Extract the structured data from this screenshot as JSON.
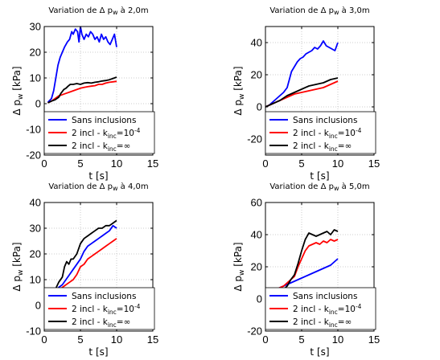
{
  "figure": {
    "legend_labels": [
      "Sans inclusions",
      "2 incl - k",
      "2 incl - k"
    ],
    "legend_sub": [
      "",
      "inc",
      "inc"
    ],
    "legend_sup": [
      "",
      "=10",
      "=∞"
    ],
    "legend_sup_exp": [
      "",
      "-4",
      ""
    ],
    "xlabel_main": "t [s]",
    "ylabel_main": "Δ p",
    "ylabel_sub": "w",
    "ylabel_unit": " [kPa]"
  },
  "colors": {
    "sans": "#0000ff",
    "incl_1e4": "#ff0000",
    "incl_inf": "#000000",
    "grid": "#bfbfbf"
  },
  "chart_data": [
    {
      "type": "line",
      "title_pre": "Variation de Δ p",
      "title_sub": "w",
      "title_post": " à 2,0m",
      "xlabel": "t [s]",
      "ylabel": "Δ p w [kPa]",
      "xlim": [
        0,
        15
      ],
      "ylim": [
        -20,
        30
      ],
      "xticks": [
        0,
        5,
        10,
        15
      ],
      "yticks": [
        -20,
        -10,
        0,
        10,
        20,
        30
      ],
      "grid": true,
      "legend": "lower-right",
      "series": [
        {
          "name": "Sans inclusions",
          "color": "#0000ff",
          "x": [
            0.5,
            1.0,
            1.3,
            1.6,
            1.9,
            2.2,
            2.5,
            2.8,
            3.0,
            3.2,
            3.5,
            3.8,
            4.0,
            4.3,
            4.6,
            4.8,
            5.0,
            5.2,
            5.5,
            5.8,
            6.1,
            6.4,
            6.7,
            7.0,
            7.3,
            7.6,
            7.9,
            8.2,
            8.5,
            8.8,
            9.1,
            9.4,
            9.7,
            10.0
          ],
          "values": [
            0.5,
            2,
            5,
            10,
            15,
            18,
            20,
            22,
            23,
            24,
            25,
            28,
            27,
            29,
            28,
            24,
            30,
            27,
            25,
            27,
            26,
            28,
            27,
            25,
            26,
            24,
            27,
            25,
            26,
            24,
            23,
            25,
            27,
            22
          ]
        },
        {
          "name": "2 incl - kinc=10-4",
          "color": "#ff0000",
          "x": [
            0.5,
            1.0,
            1.5,
            2.0,
            2.5,
            3.0,
            3.5,
            4.0,
            4.5,
            5.0,
            5.5,
            6.0,
            6.5,
            7.0,
            7.5,
            8.0,
            8.5,
            9.0,
            9.5,
            10.0
          ],
          "values": [
            0.3,
            1.0,
            2.0,
            3.0,
            3.5,
            4.0,
            4.5,
            5.0,
            5.5,
            6.0,
            6.3,
            6.6,
            6.8,
            7.0,
            7.5,
            7.5,
            8.0,
            8.3,
            8.5,
            8.7
          ]
        },
        {
          "name": "2 incl - kinc=∞",
          "color": "#000000",
          "x": [
            0.5,
            1.0,
            1.5,
            2.0,
            2.3,
            2.7,
            3.0,
            3.3,
            3.6,
            4.0,
            4.5,
            5.0,
            5.5,
            6.0,
            6.5,
            7.0,
            7.5,
            8.0,
            8.5,
            9.0,
            9.5,
            10.0
          ],
          "values": [
            0.3,
            1.0,
            1.5,
            2.5,
            4.0,
            5.5,
            6.0,
            6.8,
            7.5,
            7.5,
            7.8,
            7.5,
            8.0,
            8.2,
            8.0,
            8.3,
            8.5,
            8.8,
            9.0,
            9.3,
            9.8,
            10.3
          ]
        }
      ]
    },
    {
      "type": "line",
      "title_pre": "Variation de Δ p",
      "title_sub": "w",
      "title_post": " à 3,0m",
      "xlabel": "t [s]",
      "ylabel": "Δ p w [kPa]",
      "xlim": [
        0,
        15
      ],
      "ylim": [
        -30,
        50
      ],
      "xticks": [
        0,
        5,
        10,
        15
      ],
      "yticks": [
        -20,
        0,
        20,
        40
      ],
      "grid": true,
      "legend": "lower-right",
      "series": [
        {
          "name": "Sans inclusions",
          "color": "#0000ff",
          "x": [
            0,
            0.5,
            1.0,
            1.5,
            2.0,
            2.5,
            3.0,
            3.3,
            3.6,
            4.0,
            4.4,
            4.8,
            5.2,
            5.6,
            6.0,
            6.4,
            6.8,
            7.2,
            7.6,
            8.0,
            8.4,
            8.8,
            9.2,
            9.6,
            10.0
          ],
          "values": [
            0,
            1,
            3,
            5,
            7,
            9,
            12,
            17,
            22,
            25,
            28,
            30,
            31,
            33,
            34,
            35,
            37,
            36,
            38,
            41,
            38,
            37,
            36,
            35,
            40
          ]
        },
        {
          "name": "2 incl - kinc=10-4",
          "color": "#ff0000",
          "x": [
            0,
            1.0,
            2.0,
            3.0,
            4.0,
            5.0,
            6.0,
            7.0,
            8.0,
            9.0,
            10.0
          ],
          "values": [
            0,
            2,
            4,
            6,
            8,
            9,
            10,
            11,
            12,
            14,
            16
          ]
        },
        {
          "name": "2 incl - kinc=∞",
          "color": "#000000",
          "x": [
            0,
            1.0,
            2.0,
            3.0,
            4.0,
            5.0,
            6.0,
            7.0,
            8.0,
            9.0,
            10.0
          ],
          "values": [
            0,
            2,
            4,
            7,
            9,
            11,
            13,
            14,
            15,
            17,
            18
          ]
        }
      ]
    },
    {
      "type": "line",
      "title_pre": "Variation de Δ p",
      "title_sub": "w",
      "title_post": " à 4,0m",
      "xlabel": "t [s]",
      "ylabel": "Δ p w [kPa]",
      "xlim": [
        0,
        15
      ],
      "ylim": [
        -10,
        40
      ],
      "xticks": [
        0,
        5,
        10,
        15
      ],
      "yticks": [
        -10,
        0,
        10,
        20,
        30,
        40
      ],
      "grid": true,
      "legend": "lower-right",
      "series": [
        {
          "name": "Sans inclusions",
          "color": "#0000ff",
          "x": [
            0,
            0.5,
            1.0,
            1.5,
            2.0,
            2.5,
            3.0,
            3.5,
            4.0,
            4.5,
            5.0,
            5.5,
            6.0,
            6.5,
            7.0,
            7.5,
            8.0,
            8.5,
            9.0,
            9.5,
            10.0
          ],
          "values": [
            0,
            1,
            3,
            5,
            7,
            8,
            10,
            12,
            14,
            16,
            18,
            21,
            23,
            24,
            25,
            26,
            27,
            28,
            29,
            31,
            30
          ]
        },
        {
          "name": "2 incl - kinc=10-4",
          "color": "#ff0000",
          "x": [
            0,
            0.5,
            1.0,
            1.5,
            2.0,
            2.5,
            3.0,
            3.5,
            4.0,
            4.5,
            5.0,
            5.5,
            6.0,
            6.5,
            7.0,
            7.5,
            8.0,
            8.5,
            9.0,
            9.5,
            10.0
          ],
          "values": [
            0,
            1,
            3,
            5,
            6,
            7,
            8,
            9,
            10,
            12,
            15,
            16,
            18,
            19,
            20,
            21,
            22,
            23,
            24,
            25,
            26
          ]
        },
        {
          "name": "2 incl - kinc=∞",
          "color": "#000000",
          "x": [
            0,
            0.5,
            1.0,
            1.5,
            2.0,
            2.5,
            2.8,
            3.1,
            3.4,
            3.7,
            4.0,
            4.5,
            5.0,
            5.5,
            6.0,
            6.5,
            7.0,
            7.5,
            8.0,
            8.5,
            9.0,
            9.5,
            10.0
          ],
          "values": [
            0,
            1,
            3,
            6,
            9,
            11,
            15,
            17,
            16,
            18,
            18,
            20,
            24,
            26,
            27,
            28,
            29,
            30,
            30,
            31,
            31,
            32,
            33
          ]
        }
      ]
    },
    {
      "type": "line",
      "title_pre": "Variation de Δ p",
      "title_sub": "w",
      "title_post": " à 5,0m",
      "xlabel": "t [s]",
      "ylabel": "Δ p w [kPa]",
      "xlim": [
        0,
        15
      ],
      "ylim": [
        -20,
        60
      ],
      "xticks": [
        0,
        5,
        10,
        15
      ],
      "yticks": [
        -20,
        0,
        20,
        40,
        60
      ],
      "grid": true,
      "legend": "lower-right",
      "series": [
        {
          "name": "Sans inclusions",
          "color": "#0000ff",
          "x": [
            1.0,
            2.0,
            3.0,
            4.0,
            5.0,
            6.0,
            7.0,
            8.0,
            9.0,
            10.0
          ],
          "values": [
            5,
            7,
            9,
            11,
            13,
            15,
            17,
            19,
            21,
            25
          ]
        },
        {
          "name": "2 incl - kinc=10-4",
          "color": "#ff0000",
          "x": [
            1.0,
            1.5,
            2.0,
            2.5,
            3.0,
            3.5,
            4.0,
            4.5,
            5.0,
            5.5,
            6.0,
            6.5,
            7.0,
            7.5,
            8.0,
            8.5,
            9.0,
            9.5,
            10.0
          ],
          "values": [
            5,
            6,
            7,
            8,
            10,
            12,
            14,
            20,
            25,
            30,
            33,
            34,
            35,
            34,
            36,
            35,
            37,
            36,
            37
          ]
        },
        {
          "name": "2 incl - kinc=∞",
          "color": "#000000",
          "x": [
            0,
            1.0,
            2.0,
            3.0,
            3.5,
            4.0,
            4.5,
            5.0,
            5.5,
            6.0,
            6.5,
            7.0,
            7.5,
            8.0,
            8.5,
            9.0,
            9.5,
            10.0
          ],
          "values": [
            0,
            2,
            4,
            8,
            12,
            15,
            22,
            30,
            37,
            41,
            40,
            39,
            40,
            41,
            42,
            40,
            43,
            42
          ]
        }
      ]
    }
  ]
}
